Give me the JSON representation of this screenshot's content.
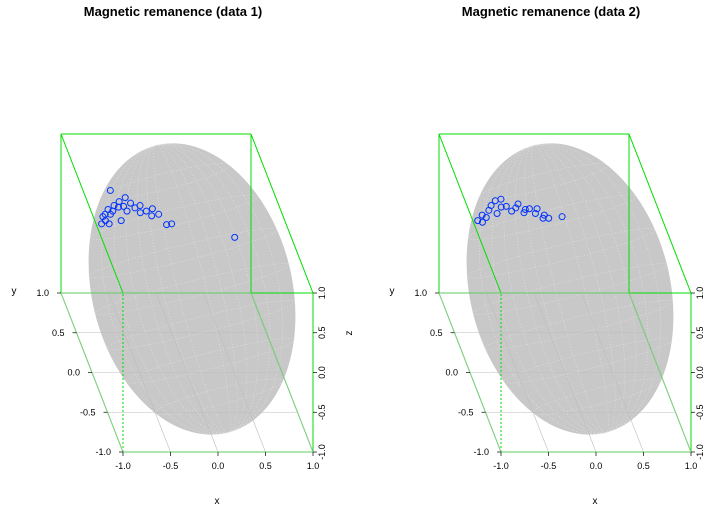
{
  "chart_data": [
    {
      "type": "scatter",
      "title": "Magnetic remanence (data 1)",
      "xlabel": "x",
      "ylabel": "y",
      "zlabel": "z",
      "xlim": [
        -1,
        1
      ],
      "ylim": [
        -1,
        1
      ],
      "zlim": [
        -1,
        1
      ],
      "x_ticks": [
        "-1.0",
        "-0.5",
        "0.0",
        "0.5",
        "1.0"
      ],
      "y_ticks": [
        "-1.0",
        "-0.5",
        "0.0",
        "0.5",
        "1.0"
      ],
      "z_ticks": [
        "-1.0",
        "-0.5",
        "0.0",
        "0.5",
        "1.0"
      ],
      "surface": "unit sphere",
      "colors": {
        "box": "#00dd00",
        "sphere": "#c8c8c8",
        "points": "#0033ff"
      },
      "points": [
        [
          -0.85,
          0.15,
          0.72
        ],
        [
          -0.8,
          0.18,
          0.73
        ],
        [
          -0.82,
          0.2,
          0.76
        ],
        [
          -0.79,
          0.22,
          0.77
        ],
        [
          -0.78,
          0.12,
          0.75
        ],
        [
          -0.74,
          0.2,
          0.79
        ],
        [
          -0.7,
          0.25,
          0.78
        ],
        [
          -0.67,
          0.3,
          0.8
        ],
        [
          -0.66,
          0.1,
          0.81
        ],
        [
          -0.63,
          0.28,
          0.8
        ],
        [
          -0.6,
          0.35,
          0.8
        ],
        [
          -0.57,
          0.3,
          0.79
        ],
        [
          -0.55,
          0.25,
          0.78
        ],
        [
          -0.52,
          0.4,
          0.8
        ],
        [
          -0.48,
          0.35,
          0.78
        ],
        [
          -0.45,
          0.3,
          0.77
        ],
        [
          -0.41,
          0.25,
          0.76
        ],
        [
          -0.38,
          0.35,
          0.75
        ],
        [
          -0.33,
          0.3,
          0.73
        ],
        [
          -0.29,
          0.25,
          0.72
        ],
        [
          -0.25,
          0.35,
          0.71
        ],
        [
          -0.2,
          0.3,
          0.69
        ],
        [
          -0.15,
          0.2,
          0.66
        ],
        [
          -0.08,
          0.25,
          0.62
        ],
        [
          0.6,
          0.3,
          0.4
        ],
        [
          -0.75,
          0.25,
          0.8
        ],
        [
          -0.66,
          0.45,
          0.84
        ]
      ]
    },
    {
      "type": "scatter",
      "title": "Magnetic remanence (data 2)",
      "xlabel": "x",
      "ylabel": "y",
      "zlabel": "z",
      "xlim": [
        -1,
        1
      ],
      "ylim": [
        -1,
        1
      ],
      "zlim": [
        -1,
        1
      ],
      "x_ticks": [
        "-1.0",
        "-0.5",
        "0.0",
        "0.5",
        "1.0"
      ],
      "y_ticks": [
        "-1.0",
        "-0.5",
        "0.0",
        "0.5",
        "1.0"
      ],
      "z_ticks": [
        "-1.0",
        "-0.5",
        "0.0",
        "0.5",
        "1.0"
      ],
      "surface": "unit sphere",
      "colors": {
        "box": "#00dd00",
        "sphere": "#c8c8c8",
        "points": "#0033ff"
      },
      "points": [
        [
          -0.86,
          0.18,
          0.73
        ],
        [
          -0.82,
          0.15,
          0.74
        ],
        [
          -0.8,
          0.22,
          0.76
        ],
        [
          -0.77,
          0.18,
          0.77
        ],
        [
          -0.72,
          0.25,
          0.79
        ],
        [
          -0.68,
          0.3,
          0.8
        ],
        [
          -0.65,
          0.2,
          0.8
        ],
        [
          -0.62,
          0.35,
          0.81
        ],
        [
          -0.58,
          0.28,
          0.8
        ],
        [
          -0.55,
          0.38,
          0.8
        ],
        [
          -0.52,
          0.3,
          0.79
        ],
        [
          -0.48,
          0.25,
          0.78
        ],
        [
          -0.42,
          0.3,
          0.77
        ],
        [
          -0.38,
          0.35,
          0.77
        ],
        [
          -0.35,
          0.25,
          0.76
        ],
        [
          -0.32,
          0.3,
          0.75
        ],
        [
          -0.27,
          0.32,
          0.74
        ],
        [
          -0.22,
          0.28,
          0.72
        ],
        [
          -0.18,
          0.35,
          0.71
        ],
        [
          -0.15,
          0.25,
          0.69
        ],
        [
          -0.12,
          0.3,
          0.68
        ],
        [
          -0.08,
          0.28,
          0.66
        ],
        [
          0.1,
          0.4,
          0.56
        ]
      ]
    }
  ]
}
